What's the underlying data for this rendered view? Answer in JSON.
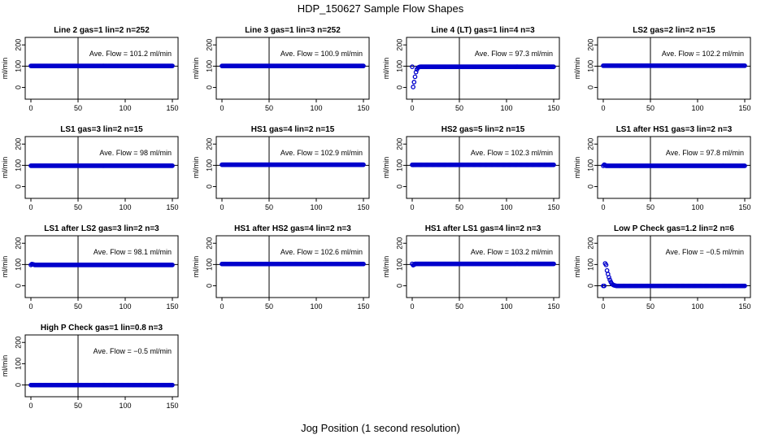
{
  "figure": {
    "title": "HDP_150627  Sample Flow Shapes",
    "xlabel": "Jog Position (1 second resolution)"
  },
  "chart_data": [
    {
      "type": "scatter",
      "title": "Line 2 gas=1 lin=2 n=252",
      "ylabel": "ml/min",
      "xlim": [
        0,
        150
      ],
      "ylim": [
        -40,
        220
      ],
      "xticks": [
        0,
        50,
        100,
        150
      ],
      "yticks": [
        0,
        100,
        200
      ],
      "vline": 50,
      "hline": 100,
      "annotation": "Ave. Flow = 101.2  ml/min",
      "x_range": [
        0,
        150
      ],
      "shape": "flat",
      "level": 101.2
    },
    {
      "type": "scatter",
      "title": "Line 3 gas=1 lin=3 n=252",
      "ylabel": "ml/min",
      "xlim": [
        0,
        150
      ],
      "ylim": [
        -40,
        220
      ],
      "xticks": [
        0,
        50,
        100,
        150
      ],
      "yticks": [
        0,
        100,
        200
      ],
      "vline": 50,
      "hline": 100,
      "annotation": "Ave. Flow = 100.9  ml/min",
      "x_range": [
        0,
        150
      ],
      "shape": "flat",
      "level": 100.9
    },
    {
      "type": "scatter",
      "title": "Line 4 (LT) gas=1 lin=4 n=3",
      "ylabel": "ml/min",
      "xlim": [
        0,
        150
      ],
      "ylim": [
        -40,
        220
      ],
      "xticks": [
        0,
        50,
        100,
        150
      ],
      "yticks": [
        0,
        100,
        200
      ],
      "vline": 50,
      "hline": 100,
      "annotation": "Ave. Flow = 97.3  ml/min",
      "x_range": [
        0,
        150
      ],
      "shape": "rise",
      "level": 97.3,
      "start_points": [
        [
          1,
          2
        ],
        [
          2,
          25
        ],
        [
          3,
          50
        ],
        [
          4,
          72
        ],
        [
          5,
          85
        ],
        [
          6,
          92
        ],
        [
          7,
          95
        ],
        [
          8,
          97
        ]
      ]
    },
    {
      "type": "scatter",
      "title": "LS2 gas=2 lin=2 n=15",
      "ylabel": "ml/min",
      "xlim": [
        0,
        150
      ],
      "ylim": [
        -40,
        220
      ],
      "xticks": [
        0,
        50,
        100,
        150
      ],
      "yticks": [
        0,
        100,
        200
      ],
      "vline": 50,
      "hline": 100,
      "annotation": "Ave. Flow = 102.2  ml/min",
      "x_range": [
        0,
        150
      ],
      "shape": "flat",
      "level": 102.2
    },
    {
      "type": "scatter",
      "title": "LS1 gas=3 lin=2 n=15",
      "ylabel": "ml/min",
      "xlim": [
        0,
        150
      ],
      "ylim": [
        -40,
        220
      ],
      "xticks": [
        0,
        50,
        100,
        150
      ],
      "yticks": [
        0,
        100,
        200
      ],
      "vline": 50,
      "hline": 100,
      "annotation": "Ave. Flow = 98  ml/min",
      "x_range": [
        0,
        150
      ],
      "shape": "flat",
      "level": 98
    },
    {
      "type": "scatter",
      "title": "HS1 gas=4 lin=2 n=15",
      "ylabel": "ml/min",
      "xlim": [
        0,
        150
      ],
      "ylim": [
        -40,
        220
      ],
      "xticks": [
        0,
        50,
        100,
        150
      ],
      "yticks": [
        0,
        100,
        200
      ],
      "vline": 50,
      "hline": 100,
      "annotation": "Ave. Flow = 102.9  ml/min",
      "x_range": [
        0,
        150
      ],
      "shape": "flat",
      "level": 102.9
    },
    {
      "type": "scatter",
      "title": "HS2 gas=5 lin=2 n=15",
      "ylabel": "ml/min",
      "xlim": [
        0,
        150
      ],
      "ylim": [
        -40,
        220
      ],
      "xticks": [
        0,
        50,
        100,
        150
      ],
      "yticks": [
        0,
        100,
        200
      ],
      "vline": 50,
      "hline": 100,
      "annotation": "Ave. Flow = 102.3  ml/min",
      "x_range": [
        0,
        150
      ],
      "shape": "flat",
      "level": 102.3
    },
    {
      "type": "scatter",
      "title": "LS1 after HS1 gas=3 lin=2 n=3",
      "ylabel": "ml/min",
      "xlim": [
        0,
        150
      ],
      "ylim": [
        -40,
        220
      ],
      "xticks": [
        0,
        50,
        100,
        150
      ],
      "yticks": [
        0,
        100,
        200
      ],
      "vline": 50,
      "hline": 100,
      "annotation": "Ave. Flow = 97.8  ml/min",
      "x_range": [
        0,
        150
      ],
      "shape": "flat",
      "level": 97.8,
      "start_points": [
        [
          1,
          103
        ],
        [
          2,
          101
        ]
      ]
    },
    {
      "type": "scatter",
      "title": "LS1 after LS2 gas=3 lin=2 n=3",
      "ylabel": "ml/min",
      "xlim": [
        0,
        150
      ],
      "ylim": [
        -40,
        220
      ],
      "xticks": [
        0,
        50,
        100,
        150
      ],
      "yticks": [
        0,
        100,
        200
      ],
      "vline": 50,
      "hline": 100,
      "annotation": "Ave. Flow = 98.1  ml/min",
      "x_range": [
        0,
        150
      ],
      "shape": "flat",
      "level": 98.1,
      "start_points": [
        [
          1,
          102
        ],
        [
          2,
          101
        ],
        [
          3,
          100
        ]
      ]
    },
    {
      "type": "scatter",
      "title": "HS1 after HS2 gas=4 lin=2 n=3",
      "ylabel": "ml/min",
      "xlim": [
        0,
        150
      ],
      "ylim": [
        -40,
        220
      ],
      "xticks": [
        0,
        50,
        100,
        150
      ],
      "yticks": [
        0,
        100,
        200
      ],
      "vline": 50,
      "hline": 100,
      "annotation": "Ave. Flow = 102.6  ml/min",
      "x_range": [
        0,
        150
      ],
      "shape": "flat",
      "level": 102.6
    },
    {
      "type": "scatter",
      "title": "HS1 after LS1 gas=4 lin=2 n=3",
      "ylabel": "ml/min",
      "xlim": [
        0,
        150
      ],
      "ylim": [
        -40,
        220
      ],
      "xticks": [
        0,
        50,
        100,
        150
      ],
      "yticks": [
        0,
        100,
        200
      ],
      "vline": 50,
      "hline": 100,
      "annotation": "Ave. Flow = 103.2  ml/min",
      "x_range": [
        0,
        150
      ],
      "shape": "flat",
      "level": 103.2,
      "start_points": [
        [
          1,
          97
        ],
        [
          2,
          99
        ]
      ]
    },
    {
      "type": "scatter",
      "title": "Low P Check gas=1.2 lin=2 n=6",
      "ylabel": "ml/min",
      "xlim": [
        0,
        150
      ],
      "ylim": [
        -40,
        220
      ],
      "xticks": [
        0,
        50,
        100,
        150
      ],
      "yticks": [
        0,
        100,
        200
      ],
      "vline": 50,
      "hline": 0,
      "annotation": "Ave. Flow = −0.5  ml/min",
      "x_range": [
        0,
        150
      ],
      "shape": "decay",
      "level": -0.5,
      "start_points": [
        [
          2,
          105
        ],
        [
          3,
          98
        ],
        [
          4,
          72
        ],
        [
          5,
          55
        ],
        [
          6,
          40
        ],
        [
          7,
          28
        ],
        [
          8,
          18
        ],
        [
          9,
          10
        ],
        [
          10,
          6
        ],
        [
          11,
          3
        ],
        [
          12,
          1.5
        ],
        [
          13,
          0.5
        ]
      ]
    },
    {
      "type": "scatter",
      "title": "High P Check gas=1 lin=0.8 n=3",
      "ylabel": "ml/min",
      "xlim": [
        0,
        150
      ],
      "ylim": [
        -40,
        220
      ],
      "xticks": [
        0,
        50,
        100,
        150
      ],
      "yticks": [
        0,
        100,
        200
      ],
      "vline": 50,
      "hline": 0,
      "annotation": "Ave. Flow = −0.5  ml/min",
      "x_range": [
        0,
        150
      ],
      "shape": "flat",
      "level": -0.5
    }
  ],
  "colors": {
    "points": "#0000cc",
    "axes": "#000000"
  }
}
